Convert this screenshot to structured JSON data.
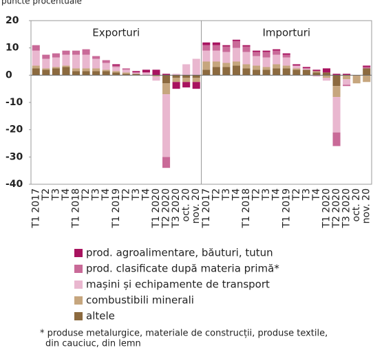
{
  "chart_data": [
    {
      "type": "bar",
      "stacked": true,
      "subtitle": "puncte procentuale",
      "title": "Exporturi",
      "ylim": [
        -40,
        20
      ],
      "yticks": [
        -40,
        -30,
        -20,
        -10,
        0,
        10,
        20
      ],
      "footnote": [
        "* produse metalurgice, materiale de construcții, produse textile,",
        "din cauciuc, din lemn"
      ],
      "categories": [
        "T1 2017",
        "T2",
        "T3",
        "T4",
        "T1 2018",
        "T2",
        "T3",
        "T4",
        "T1 2019",
        "T2",
        "T3",
        "T4",
        "T1 2020",
        "T2 2020",
        "T3 2020",
        "oct. 20",
        "nov. 20"
      ],
      "series": [
        {
          "name": "prod. agroalimentare, băuturi, tutun",
          "color": "#a8135f",
          "values": [
            0,
            0,
            0,
            0,
            0,
            0,
            0,
            0,
            0.5,
            0,
            0.5,
            1,
            2,
            0.5,
            -2.5,
            -2,
            -2.5
          ]
        },
        {
          "name": "prod. clasificate după materia primă*",
          "color": "#c96a98",
          "values": [
            2,
            1.5,
            1.5,
            1.5,
            1.5,
            2,
            1,
            1,
            0.5,
            0.5,
            0,
            0,
            0,
            -4,
            0,
            0,
            0
          ]
        },
        {
          "name": "mașini și echipamente de transport",
          "color": "#e9b7cf",
          "values": [
            5.5,
            3.5,
            3.5,
            4,
            5,
            5,
            3.5,
            2.5,
            1.5,
            1,
            0.5,
            1,
            -1.5,
            -23,
            0.5,
            4,
            6
          ]
        },
        {
          "name": "combustibili minerali",
          "color": "#c6a67e",
          "values": [
            1,
            0.5,
            0.5,
            0.5,
            1,
            1,
            1,
            0.5,
            0.5,
            0.5,
            0,
            0,
            -0.5,
            -4,
            -1.5,
            -1.5,
            -1.5
          ]
        },
        {
          "name": "altele",
          "color": "#8c6a3f",
          "values": [
            2.5,
            2,
            2.5,
            3,
            1.5,
            1.5,
            1.5,
            1.5,
            1,
            0.5,
            0.5,
            0,
            0,
            -3,
            -1,
            -1,
            -1
          ]
        }
      ]
    },
    {
      "type": "bar",
      "stacked": true,
      "title": "Importuri",
      "ylim": [
        -40,
        20
      ],
      "categories": [
        "T1 2017",
        "T2",
        "T3",
        "T4",
        "T1 2018",
        "T2",
        "T3",
        "T4",
        "T1 2019",
        "T2",
        "T3",
        "T4",
        "T1 2020",
        "T2 2020",
        "T3 2020",
        "oct. 20",
        "nov. 20"
      ],
      "series": [
        {
          "name": "prod. agroalimentare, băuturi, tutun",
          "color": "#a8135f",
          "values": [
            1,
            1,
            0.5,
            0.5,
            0.5,
            0.5,
            0.5,
            0.5,
            0.5,
            0.5,
            0.5,
            0.5,
            1.5,
            0.5,
            0.5,
            0,
            0.5
          ]
        },
        {
          "name": "prod. clasificate după materia primă*",
          "color": "#c96a98",
          "values": [
            2,
            2,
            2,
            2.5,
            2,
            1.5,
            2,
            1.5,
            1,
            0,
            0,
            0,
            0,
            -5,
            -0.5,
            0,
            0.5
          ]
        },
        {
          "name": "mașini și echipamente de transport",
          "color": "#e9b7cf",
          "values": [
            4,
            4,
            4,
            5,
            4.5,
            3.5,
            3.5,
            3.5,
            3,
            1,
            0.5,
            -0.5,
            -1,
            -13,
            -2,
            0,
            0
          ]
        },
        {
          "name": "combustibili minerali",
          "color": "#c6a67e",
          "values": [
            3,
            2,
            1.5,
            1.5,
            1.5,
            1.5,
            1,
            1.5,
            1,
            0.5,
            0,
            0.5,
            -1,
            -4,
            -1.5,
            -3,
            -2.5
          ]
        },
        {
          "name": "altele",
          "color": "#8c6a3f",
          "values": [
            2,
            3,
            3,
            3.5,
            2.5,
            2,
            2,
            2.5,
            2.5,
            2,
            2,
            1,
            1,
            -4,
            0,
            0,
            2.5
          ]
        }
      ]
    }
  ]
}
